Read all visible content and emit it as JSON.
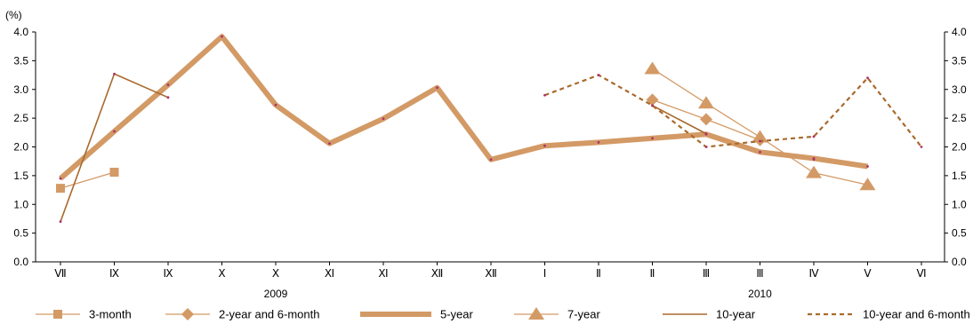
{
  "chart_data": {
    "type": "line",
    "unit_label": "(%)",
    "ylim": [
      0.0,
      4.0
    ],
    "yticks": [
      "0.0",
      "0.5",
      "1.0",
      "1.5",
      "2.0",
      "2.5",
      "3.0",
      "3.5",
      "4.0"
    ],
    "y2ticks": [
      "0.0",
      "0.5",
      "1.0",
      "1.5",
      "2.0",
      "2.5",
      "3.0",
      "3.5",
      "4.0"
    ],
    "categories": [
      "Ⅶ",
      "Ⅸ",
      "Ⅸ",
      "Ⅹ",
      "Ⅹ",
      "Ⅺ",
      "Ⅺ",
      "Ⅻ",
      "Ⅻ",
      "Ⅰ",
      "Ⅱ",
      "Ⅱ",
      "Ⅲ",
      "Ⅲ",
      "Ⅳ",
      "Ⅴ",
      "Ⅵ"
    ],
    "year_labels": [
      {
        "label": "2009",
        "category_index": 4
      },
      {
        "label": "2010",
        "category_index": 13
      }
    ],
    "grid": false,
    "legend_position": "bottom",
    "series": [
      {
        "name": "3-month",
        "color": "#d39a66",
        "style": "marker-square",
        "values": [
          1.28,
          1.56,
          null,
          null,
          null,
          null,
          null,
          null,
          null,
          null,
          null,
          null,
          null,
          null,
          null,
          null,
          null
        ]
      },
      {
        "name": "2-year and 6-month",
        "color": "#d39a66",
        "style": "marker-diamond",
        "values": [
          null,
          null,
          null,
          null,
          null,
          null,
          null,
          null,
          null,
          null,
          null,
          2.82,
          2.48,
          2.12,
          null,
          null,
          null
        ]
      },
      {
        "name": "5-year",
        "color": "#d39a66",
        "style": "thick",
        "values": [
          1.45,
          2.27,
          3.08,
          3.92,
          2.73,
          2.06,
          2.49,
          3.03,
          1.78,
          2.02,
          2.08,
          2.15,
          2.22,
          1.91,
          1.8,
          1.66,
          null
        ]
      },
      {
        "name": "7-year",
        "color": "#d39a66",
        "style": "marker-triangle",
        "values": [
          null,
          null,
          null,
          null,
          null,
          null,
          null,
          null,
          null,
          null,
          null,
          3.36,
          2.76,
          2.17,
          1.55,
          1.34,
          null
        ]
      },
      {
        "name": "10-year",
        "color": "#a86a2c",
        "style": "thin",
        "values": [
          0.7,
          3.27,
          2.86,
          null,
          null,
          null,
          null,
          null,
          null,
          null,
          null,
          2.72,
          2.23,
          null,
          1.78,
          null,
          null
        ]
      },
      {
        "name": "10-year and 6-month",
        "color": "#a86a2c",
        "style": "dashed",
        "values": [
          null,
          null,
          null,
          null,
          null,
          null,
          null,
          null,
          null,
          2.9,
          3.25,
          2.72,
          2.0,
          2.1,
          2.18,
          3.2,
          2.0
        ]
      }
    ]
  }
}
